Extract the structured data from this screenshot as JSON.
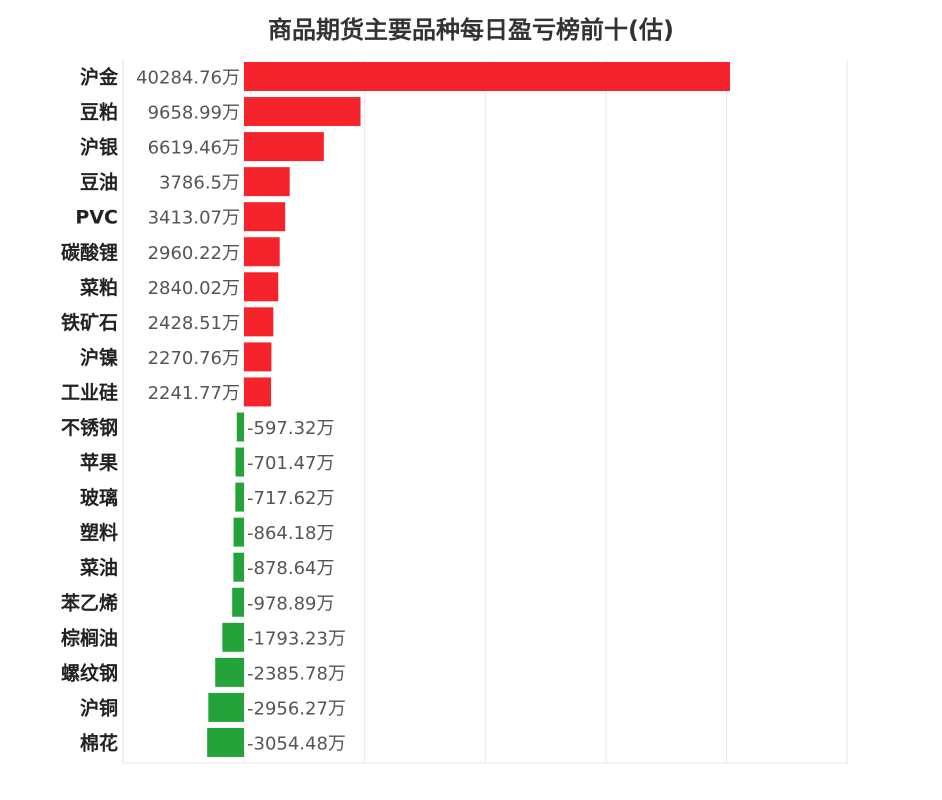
{
  "chart_data": {
    "type": "bar",
    "orientation": "horizontal",
    "title": "商品期货主要品种每日盈亏榜前十(估)",
    "unit_suffix": "万",
    "categories": [
      "沪金",
      "豆粕",
      "沪银",
      "豆油",
      "PVC",
      "碳酸锂",
      "菜粕",
      "铁矿石",
      "沪镍",
      "工业硅",
      "不锈钢",
      "苹果",
      "玻璃",
      "塑料",
      "菜油",
      "苯乙烯",
      "棕榈油",
      "螺纹钢",
      "沪铜",
      "棉花"
    ],
    "values": [
      40284.76,
      9658.99,
      6619.46,
      3786.5,
      3413.07,
      2960.22,
      2840.02,
      2428.51,
      2270.76,
      2241.77,
      -597.32,
      -701.47,
      -717.62,
      -864.18,
      -878.64,
      -978.89,
      -1793.23,
      -2385.78,
      -2956.27,
      -3054.48
    ],
    "value_labels": [
      "40284.76万",
      "9658.99万",
      "6619.46万",
      "3786.5万",
      "3413.07万",
      "2960.22万",
      "2840.02万",
      "2428.51万",
      "2270.76万",
      "2241.77万",
      "-597.32万",
      "-701.47万",
      "-717.62万",
      "-864.18万",
      "-878.64万",
      "-978.89万",
      "-1793.23万",
      "-2385.78万",
      "-2956.27万",
      "-3054.48万"
    ],
    "xlim": [
      -10000,
      50000
    ],
    "grid": true,
    "legend": "none",
    "colors": {
      "positive": "#f5232b",
      "negative": "#23a339",
      "grid": "#e8e8e8"
    }
  }
}
